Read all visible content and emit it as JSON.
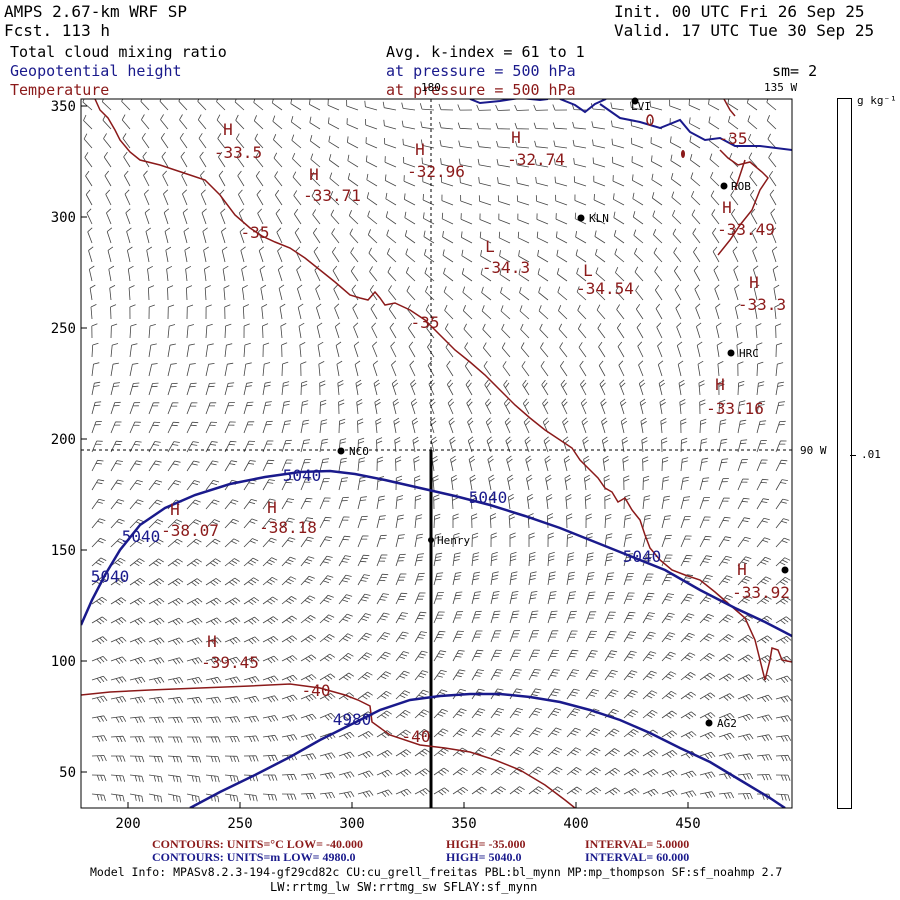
{
  "header": {
    "model": "AMPS 2.67-km WRF SP",
    "forecast": "Fcst.  113 h",
    "init": "Init. 00 UTC Fri 26 Sep 25",
    "valid": "Valid. 17 UTC Tue 30 Sep 25",
    "field1": "Total cloud mixing ratio",
    "field2": "Geopotential height",
    "field3": "Temperature",
    "avg": "Avg. k-index =  61 to   1",
    "press1": "at pressure =  500 hPa",
    "press2": "at pressure =  500 hPa",
    "sm": "sm= 2",
    "lon180": "180",
    "lon135": "135 W",
    "lon90": "90 W"
  },
  "colorbar": {
    "unit": "g kg⁻¹",
    "tick": ".01"
  },
  "axes": {
    "x_ticks": [
      "200",
      "250",
      "300",
      "350",
      "400",
      "450"
    ],
    "y_ticks": [
      "350",
      "300",
      "250",
      "200",
      "150",
      "100",
      "50"
    ]
  },
  "stations": [
    {
      "name": "LVI"
    },
    {
      "name": "ROB"
    },
    {
      "name": "KLN"
    },
    {
      "name": "HRC"
    },
    {
      "name": "NCO"
    },
    {
      "name": "Henry"
    },
    {
      "name": "AG2"
    }
  ],
  "labels": {
    "temp_highs": [
      {
        "h": "H",
        "v": "-33.5"
      },
      {
        "h": "H",
        "v": "-32.96"
      },
      {
        "h": "H",
        "v": "-32.74"
      },
      {
        "h": "H",
        "v": "-33.71"
      },
      {
        "h": "H",
        "v": "-33.49"
      },
      {
        "h": "H",
        "v": "-33.3"
      },
      {
        "h": "H",
        "v": "-33.16"
      },
      {
        "h": "H",
        "v": "-38.07"
      },
      {
        "h": "H",
        "v": "-38.18"
      },
      {
        "h": "H",
        "v": "-33.92"
      },
      {
        "h": "H",
        "v": "-39.45"
      }
    ],
    "temp_lows": [
      {
        "h": "L",
        "v": "-34.3"
      },
      {
        "h": "L",
        "v": "-34.54"
      }
    ],
    "temp_contours": [
      "-35",
      "-35",
      "-35",
      "-40",
      "-40"
    ],
    "height_contours": [
      "5040",
      "5040",
      "5040",
      "5040",
      "5040",
      "4980"
    ]
  },
  "footer": {
    "line1_a": "CONTOURS:  UNITS=°C  LOW=  -40.000",
    "line1_b": "HIGH=  -35.000",
    "line1_c": "INTERVAL=   5.0000",
    "line2_a": "CONTOURS:  UNITS=m  LOW=  4980.0",
    "line2_b": "HIGH=  5040.0",
    "line2_c": "INTERVAL=   60.000",
    "info1": "Model Info: MPASv8.2.3-194-gf29cd82c CU:cu_grell_freitas PBL:bl_mynn MP:mp_thompson SF:sf_noahmp 2.7",
    "info2": "LW:rrtmg_lw SW:rrtmg_sw SFLAY:sf_mynn"
  },
  "colors": {
    "height": "#1a1a8c",
    "temp": "#8b1a1a",
    "wind": "#444444"
  }
}
